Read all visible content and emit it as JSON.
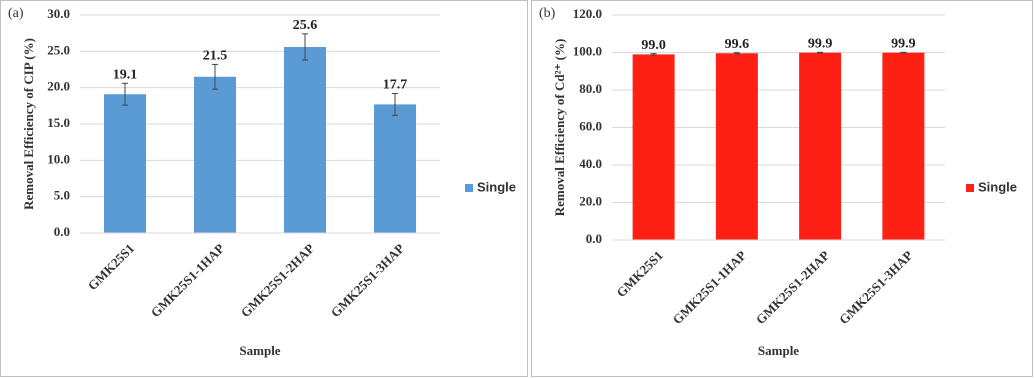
{
  "chart_data": [
    {
      "type": "bar",
      "panel_label": "(a)",
      "x_label": "Sample",
      "y_label": "Removal Efficiency of CIP (%)",
      "categories": [
        "GMK25S1",
        "GMK25S1-1HAP",
        "GMK25S1-2HAP",
        "GMK25S1-3HAP"
      ],
      "series": [
        {
          "name": "Single",
          "color": "#5b9bd5",
          "values": [
            19.1,
            21.5,
            25.6,
            17.7
          ],
          "errors": [
            1.5,
            1.7,
            1.8,
            1.5
          ]
        }
      ],
      "ylim": [
        0,
        30
      ],
      "yticks": [
        {
          "value": 0,
          "label": "0.0"
        },
        {
          "value": 5,
          "label": "5.0"
        },
        {
          "value": 10,
          "label": "10.0"
        },
        {
          "value": 15,
          "label": "15.0"
        },
        {
          "value": 20,
          "label": "20.0"
        },
        {
          "value": 25,
          "label": "25.0"
        },
        {
          "value": 30,
          "label": "30.0"
        }
      ],
      "grid": true,
      "legend": "right"
    },
    {
      "type": "bar",
      "panel_label": "(b)",
      "x_label": "Sample",
      "y_label": "Removal Efficiency of Cd²⁺ (%)",
      "categories": [
        "GMK25S1",
        "GMK25S1-1HAP",
        "GMK25S1-2HAP",
        "GMK25S1-3HAP"
      ],
      "series": [
        {
          "name": "Single",
          "color": "#ff2015",
          "values": [
            99.0,
            99.6,
            99.9,
            99.9
          ],
          "value_labels": [
            "99.0",
            "99.6",
            "99.9",
            "99.9"
          ],
          "errors": [
            0.4,
            0.3,
            0.2,
            0.2
          ]
        }
      ],
      "ylim": [
        0,
        120
      ],
      "yticks": [
        {
          "value": 0,
          "label": "0.0"
        },
        {
          "value": 20,
          "label": "20.0"
        },
        {
          "value": 40,
          "label": "40.0"
        },
        {
          "value": 60,
          "label": "60.0"
        },
        {
          "value": 80,
          "label": "80.0"
        },
        {
          "value": 100,
          "label": "100.0"
        },
        {
          "value": 120,
          "label": "120.0"
        }
      ],
      "grid": true,
      "legend": "right"
    }
  ]
}
